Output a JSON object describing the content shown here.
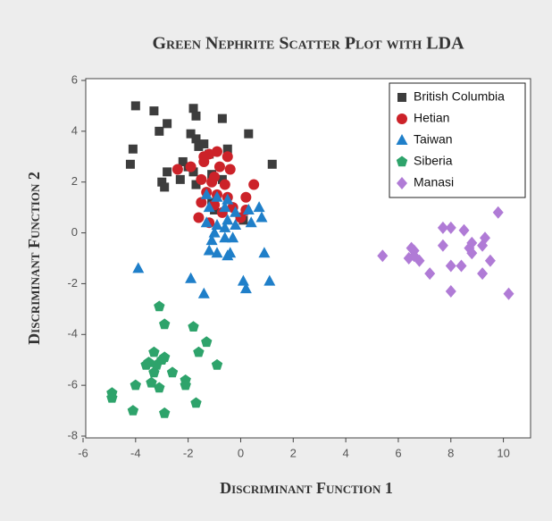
{
  "chart_data": {
    "type": "scatter",
    "title": "Green Nephrite Scatter Plot with LDA",
    "x_label": "Discriminant Function 1",
    "y_label": "Discriminant Function 2",
    "xlim": [
      -6,
      11
    ],
    "ylim": [
      -8,
      6
    ],
    "xticks": [
      -6,
      -4,
      -2,
      0,
      2,
      4,
      6,
      8,
      10
    ],
    "yticks": [
      -8,
      -6,
      -4,
      -2,
      0,
      2,
      4,
      6
    ],
    "legend": "upper right",
    "series": [
      {
        "name": "British Columbia",
        "color": "#3d3d3d",
        "marker": "square",
        "x": [
          -4.0,
          -3.3,
          -4.1,
          -4.2,
          -3.1,
          -2.8,
          -1.8,
          -1.7,
          -0.7,
          -1.9,
          -1.7,
          -1.6,
          -1.4,
          -0.5,
          0.3,
          1.2,
          -2.8,
          -3.0,
          -2.9,
          -2.2,
          -2.0,
          -1.8,
          -1.1,
          -0.7,
          -1.1,
          -1.0,
          0.1,
          -1.7,
          -1.2,
          -2.3
        ],
        "y": [
          5.0,
          4.8,
          3.3,
          2.7,
          4.0,
          4.3,
          4.9,
          4.6,
          4.5,
          3.9,
          3.7,
          3.4,
          3.5,
          3.3,
          3.9,
          2.7,
          2.4,
          2.0,
          1.8,
          2.8,
          2.6,
          2.4,
          2.3,
          2.1,
          1.2,
          0.9,
          0.5,
          1.9,
          3.1,
          2.1
        ]
      },
      {
        "name": "Hetian",
        "color": "#cc2229",
        "marker": "circle",
        "x": [
          -1.2,
          -0.9,
          -0.5,
          -2.4,
          -1.9,
          -1.4,
          -0.8,
          -0.4,
          -1.5,
          -1.1,
          -0.6,
          -1.3,
          -0.9,
          -0.5,
          -1.5,
          -1.0,
          -0.3,
          0.5,
          0.2,
          0.2,
          -1.6,
          -1.2,
          -0.7,
          0.0,
          -1.0,
          -1.4
        ],
        "y": [
          3.1,
          3.2,
          3.0,
          2.5,
          2.6,
          2.8,
          2.6,
          2.5,
          2.1,
          2.0,
          1.9,
          1.6,
          1.5,
          1.4,
          1.2,
          1.1,
          1.0,
          1.9,
          1.4,
          0.9,
          0.6,
          0.4,
          0.8,
          0.6,
          2.2,
          3.0
        ]
      },
      {
        "name": "Taiwan",
        "color": "#1f7fc9",
        "marker": "triangle",
        "x": [
          -1.3,
          -0.9,
          -0.5,
          -1.2,
          -0.6,
          -0.2,
          0.4,
          0.7,
          0.8,
          -1.3,
          -0.9,
          -0.5,
          -1.0,
          -0.6,
          -0.3,
          -1.1,
          -0.6,
          -1.2,
          -0.9,
          -0.5,
          -0.4,
          0.9,
          -3.9,
          -1.9,
          -1.4,
          0.1,
          0.2,
          1.1,
          0.3,
          -0.2
        ],
        "y": [
          1.5,
          1.4,
          1.3,
          1.0,
          1.0,
          0.8,
          0.4,
          1.0,
          0.6,
          0.4,
          0.3,
          0.5,
          0.0,
          -0.2,
          -0.2,
          -0.3,
          0.2,
          -0.7,
          -0.8,
          -0.9,
          -0.8,
          -0.8,
          -1.4,
          -1.8,
          -2.4,
          -1.9,
          -2.2,
          -1.9,
          0.9,
          0.3
        ]
      },
      {
        "name": "Siberia",
        "color": "#2ea36b",
        "marker": "pentagon",
        "x": [
          -3.1,
          -2.9,
          -1.8,
          -1.3,
          -1.6,
          -0.9,
          -3.3,
          -2.9,
          -3.5,
          -3.2,
          -3.0,
          -3.3,
          -2.6,
          -3.4,
          -3.1,
          -2.1,
          -2.1,
          -4.0,
          -4.9,
          -4.9,
          -4.1,
          -2.9,
          -1.7,
          -3.6
        ],
        "y": [
          -2.9,
          -3.6,
          -3.7,
          -4.3,
          -4.7,
          -5.2,
          -4.7,
          -4.9,
          -5.1,
          -5.2,
          -5.0,
          -5.5,
          -5.5,
          -5.9,
          -6.1,
          -5.8,
          -6.0,
          -6.0,
          -6.3,
          -6.5,
          -7.0,
          -7.1,
          -6.7,
          -5.2
        ]
      },
      {
        "name": "Manasi",
        "color": "#b07bd6",
        "marker": "diamond",
        "x": [
          5.4,
          6.5,
          6.6,
          6.4,
          6.8,
          6.6,
          7.2,
          7.7,
          8.0,
          8.5,
          7.7,
          8.0,
          8.4,
          8.7,
          8.8,
          8.8,
          9.2,
          9.3,
          9.5,
          9.2,
          9.8,
          10.2,
          8.0
        ],
        "y": [
          -0.9,
          -0.6,
          -0.7,
          -1.0,
          -1.1,
          -0.9,
          -1.6,
          0.2,
          0.2,
          0.1,
          -0.5,
          -1.3,
          -1.3,
          -0.6,
          -0.4,
          -0.8,
          -0.5,
          -0.2,
          -1.1,
          -1.6,
          0.8,
          -2.4,
          -2.3
        ]
      }
    ]
  }
}
